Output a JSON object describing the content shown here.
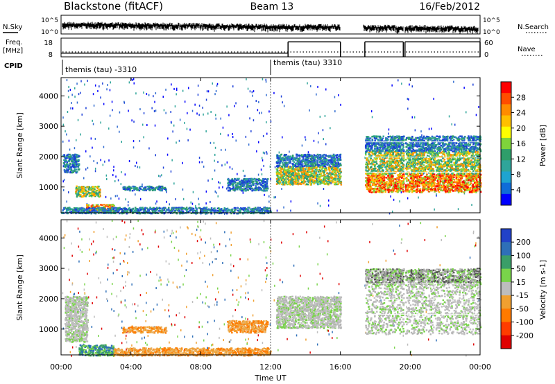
{
  "chart_data": {
    "type": "heatmap",
    "header": {
      "title": "Blackstone (fitACF)",
      "beam": "Beam 13",
      "date": "16/Feb/2012"
    },
    "nsky_panel": {
      "left_label": "N.Sky",
      "right_label": "N.Search",
      "left_ticks": [
        "10^5",
        "10^0"
      ],
      "right_ticks": [
        "10^5",
        "10^0"
      ]
    },
    "freq_panel": {
      "left_label": "Freq.",
      "left_unit": "[MHz]",
      "right_label": "Nave",
      "left_ticks": [
        "18",
        "8"
      ],
      "right_ticks": [
        "60",
        "0"
      ],
      "segments": [
        {
          "start_h": 0,
          "end_h": 13,
          "freq_mhz": 10
        },
        {
          "start_h": 13,
          "end_h": 16,
          "freq_mhz": 16
        },
        {
          "start_h": 17.4,
          "end_h": 19.6,
          "freq_mhz": 16
        },
        {
          "start_h": 19.7,
          "end_h": 24,
          "freq_mhz": 16
        }
      ]
    },
    "cpid_panel": {
      "label": "CPID",
      "entries": [
        {
          "text": "themis (tau) -3310",
          "start_h": 0
        },
        {
          "text": "themis (tau) 3310",
          "start_h": 12
        }
      ]
    },
    "power_panel": {
      "ylabel": "Slant Range [km]",
      "yticks": [
        1000,
        2000,
        3000,
        4000
      ],
      "ylim": [
        150,
        4600
      ],
      "colorbar_label": "Power [dB]",
      "colorbar_ticks": [
        "28",
        "24",
        "20",
        "16",
        "12",
        "8",
        "4"
      ],
      "colorbar_colors": [
        "#ff0000",
        "#ff4d00",
        "#ff8c00",
        "#ffc000",
        "#ffff00",
        "#7fd43b",
        "#2e9e6a",
        "#2fa59a",
        "#1ea4d0",
        "#0f6cd8",
        "#0000ff"
      ]
    },
    "velocity_panel": {
      "ylabel": "Slant Range [km]",
      "yticks": [
        1000,
        2000,
        3000,
        4000
      ],
      "ylim": [
        150,
        4600
      ],
      "colorbar_label": "Velocity [m s-1]",
      "colorbar_ticks": [
        "200",
        "100",
        "50",
        "15",
        "-15",
        "-50",
        "-100",
        "-200"
      ],
      "colorbar_colors": [
        "#2242c8",
        "#2e6fb8",
        "#3a9e68",
        "#79d44a",
        "#bdbdbd",
        "#f0a030",
        "#ff7a00",
        "#ff3c00",
        "#e00000"
      ]
    },
    "x_axis": {
      "label": "Time UT",
      "ticks": [
        "00:00",
        "04:00",
        "08:00",
        "12:00",
        "16:00",
        "20:00",
        "00:00"
      ],
      "range_h": [
        0,
        24
      ]
    },
    "data_gaps_h": [
      [
        16.0,
        17.3
      ],
      [
        19.6,
        19.7
      ]
    ],
    "power_bands": [
      {
        "start_h": 0.1,
        "end_h": 1.0,
        "r1": 1500,
        "r2": 2100,
        "level": "low"
      },
      {
        "start_h": 0.8,
        "end_h": 2.2,
        "r1": 700,
        "r2": 1050,
        "level": "mid"
      },
      {
        "start_h": 1.4,
        "end_h": 3.0,
        "r1": 200,
        "r2": 450,
        "level": "high"
      },
      {
        "start_h": 3.5,
        "end_h": 6.0,
        "r1": 900,
        "r2": 1050,
        "level": "low"
      },
      {
        "start_h": 0.0,
        "end_h": 12.0,
        "r1": 150,
        "r2": 350,
        "level": "low"
      },
      {
        "start_h": 9.5,
        "end_h": 11.8,
        "r1": 900,
        "r2": 1300,
        "level": "low"
      },
      {
        "start_h": 12.3,
        "end_h": 16.0,
        "r1": 1100,
        "r2": 1700,
        "level": "mid"
      },
      {
        "start_h": 12.3,
        "end_h": 16.0,
        "r1": 1700,
        "r2": 2100,
        "level": "low"
      },
      {
        "start_h": 17.4,
        "end_h": 24.0,
        "r1": 850,
        "r2": 1450,
        "level": "high"
      },
      {
        "start_h": 17.4,
        "end_h": 24.0,
        "r1": 1450,
        "r2": 2200,
        "level": "mid"
      },
      {
        "start_h": 17.4,
        "end_h": 24.0,
        "r1": 2200,
        "r2": 2700,
        "level": "low"
      }
    ],
    "velocity_bands": [
      {
        "start_h": 0.2,
        "end_h": 1.5,
        "r1": 600,
        "r2": 2100,
        "level": "zero"
      },
      {
        "start_h": 1.0,
        "end_h": 3.0,
        "r1": 150,
        "r2": 500,
        "level": "positive"
      },
      {
        "start_h": 3.5,
        "end_h": 6.0,
        "r1": 900,
        "r2": 1100,
        "level": "negative"
      },
      {
        "start_h": 3.0,
        "end_h": 12.0,
        "r1": 150,
        "r2": 400,
        "level": "negative"
      },
      {
        "start_h": 9.5,
        "end_h": 11.8,
        "r1": 900,
        "r2": 1300,
        "level": "negative"
      },
      {
        "start_h": 12.3,
        "end_h": 16.0,
        "r1": 1050,
        "r2": 2100,
        "level": "zero"
      },
      {
        "start_h": 17.4,
        "end_h": 24.0,
        "r1": 850,
        "r2": 2500,
        "level": "zero"
      },
      {
        "start_h": 17.4,
        "end_h": 24.0,
        "r1": 2500,
        "r2": 3000,
        "level": "zero-sparse"
      }
    ]
  }
}
